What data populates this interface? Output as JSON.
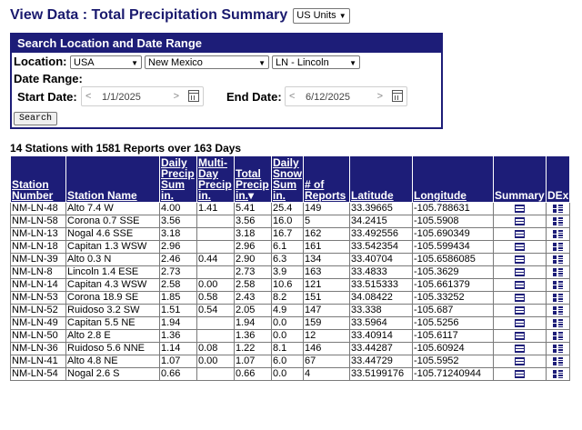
{
  "header": {
    "title": "View Data : Total Precipitation Summary",
    "units_selected": "US Units"
  },
  "search": {
    "heading": "Search Location and Date Range",
    "location_label": "Location:",
    "country": "USA",
    "state": "New Mexico",
    "county": "LN - Lincoln",
    "date_range_label": "Date Range:",
    "start_label": "Start Date:",
    "start_value": "1/1/2025",
    "end_label": "End Date:",
    "end_value": "6/12/2025",
    "button": "Search"
  },
  "results": {
    "summary": "14 Stations with 1581 Reports over 163 Days",
    "columns": [
      "Station Number",
      "Station Name",
      "Daily Precip Sum in.",
      "Multi-Day Precip in.",
      "Total Precip in.",
      "Daily Snow Sum in.",
      "# of Reports",
      "Latitude",
      "Longitude",
      "Summary",
      "DEx"
    ],
    "rows": [
      [
        "NM-LN-48",
        "Alto 7.4 W",
        "4.00",
        "1.41",
        "5.41",
        "25.4",
        "149",
        "33.39665",
        "-105.788631"
      ],
      [
        "NM-LN-58",
        "Corona 0.7 SSE",
        "3.56",
        "",
        "3.56",
        "16.0",
        "5",
        "34.2415",
        "-105.5908"
      ],
      [
        "NM-LN-13",
        "Nogal 4.6 SSE",
        "3.18",
        "",
        "3.18",
        "16.7",
        "162",
        "33.492556",
        "-105.690349"
      ],
      [
        "NM-LN-18",
        "Capitan 1.3 WSW",
        "2.96",
        "",
        "2.96",
        "6.1",
        "161",
        "33.542354",
        "-105.599434"
      ],
      [
        "NM-LN-39",
        "Alto 0.3 N",
        "2.46",
        "0.44",
        "2.90",
        "6.3",
        "134",
        "33.40704",
        "-105.6586085"
      ],
      [
        "NM-LN-8",
        "Lincoln 1.4 ESE",
        "2.73",
        "",
        "2.73",
        "3.9",
        "163",
        "33.4833",
        "-105.3629"
      ],
      [
        "NM-LN-14",
        "Capitan 4.3 WSW",
        "2.58",
        "0.00",
        "2.58",
        "10.6",
        "121",
        "33.515333",
        "-105.661379"
      ],
      [
        "NM-LN-53",
        "Corona 18.9 SE",
        "1.85",
        "0.58",
        "2.43",
        "8.2",
        "151",
        "34.08422",
        "-105.33252"
      ],
      [
        "NM-LN-52",
        "Ruidoso 3.2 SW",
        "1.51",
        "0.54",
        "2.05",
        "4.9",
        "147",
        "33.338",
        "-105.687"
      ],
      [
        "NM-LN-49",
        "Capitan 5.5 NE",
        "1.94",
        "",
        "1.94",
        "0.0",
        "159",
        "33.5964",
        "-105.5256"
      ],
      [
        "NM-LN-50",
        "Alto 2.8 E",
        "1.36",
        "",
        "1.36",
        "0.0",
        "12",
        "33.40914",
        "-105.6117"
      ],
      [
        "NM-LN-36",
        "Ruidoso 5.6 NNE",
        "1.14",
        "0.08",
        "1.22",
        "8.1",
        "146",
        "33.44287",
        "-105.60924"
      ],
      [
        "NM-LN-41",
        "Alto 4.8 NE",
        "1.07",
        "0.00",
        "1.07",
        "6.0",
        "67",
        "33.44729",
        "-105.5952"
      ],
      [
        "NM-LN-54",
        "Nogal 2.6 S",
        "0.66",
        "",
        "0.66",
        "0.0",
        "4",
        "33.5199176",
        "-105.71240944"
      ]
    ]
  }
}
